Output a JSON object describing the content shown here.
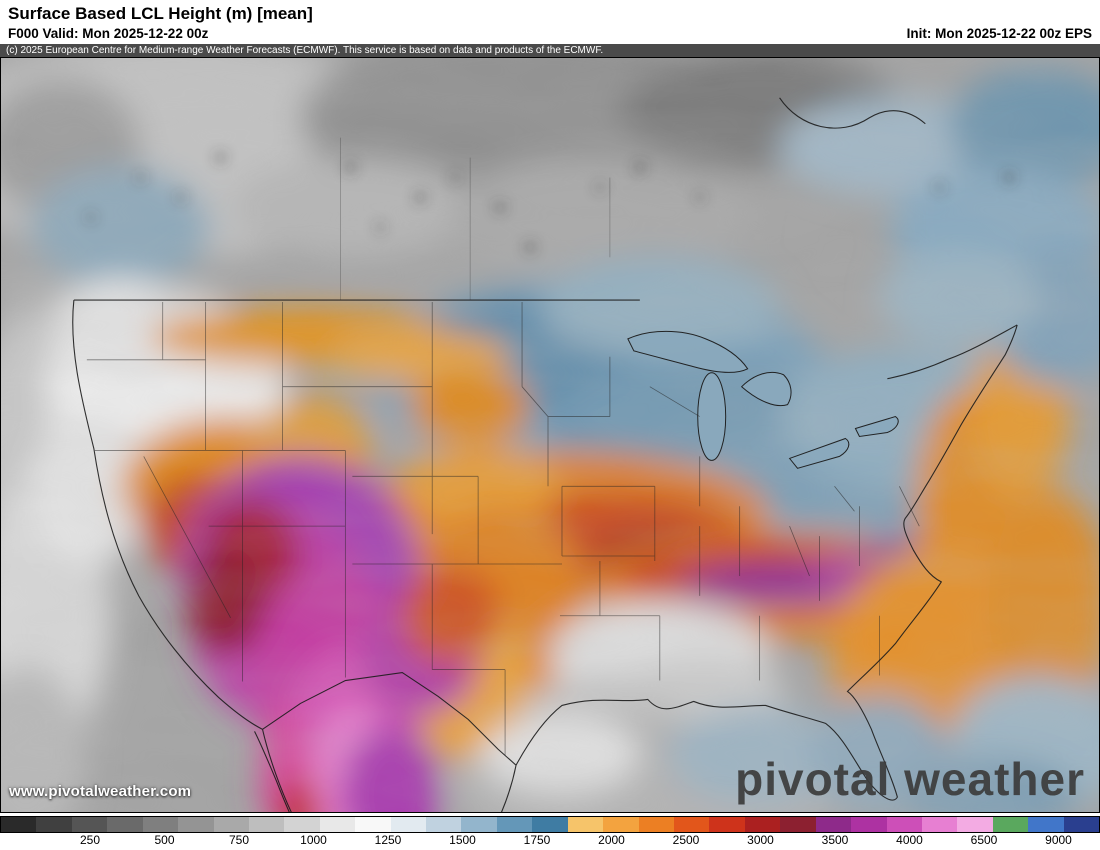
{
  "header": {
    "title": "Surface Based LCL Height (m) [mean]",
    "valid": "F000 Valid: Mon 2025-12-22 00z",
    "init": "Init: Mon 2025-12-22 00z EPS"
  },
  "copyright": {
    "text": "(c) 2025 European Centre for Medium-range Weather Forecasts (ECMWF). This service is based on data and products of the ECMWF."
  },
  "map": {
    "watermark": "www.pivotalweather.com",
    "logo": "pivotal weather"
  },
  "colorbar": {
    "labels": [
      "250",
      "500",
      "750",
      "1000",
      "1250",
      "1500",
      "1750",
      "2000",
      "2500",
      "3000",
      "3500",
      "4000",
      "6500",
      "9000"
    ],
    "colors": [
      "#2a2a2a",
      "#404040",
      "#555555",
      "#6a6a6a",
      "#7f7f7f",
      "#949494",
      "#a9a9a9",
      "#bebebe",
      "#d3d3d3",
      "#e8e8e8",
      "#f8f8f8",
      "#e2eaf0",
      "#c0d2e0",
      "#93b5cc",
      "#6497b8",
      "#3f7ca3",
      "#f6c46a",
      "#f3a33f",
      "#ec7f23",
      "#e2561b",
      "#ce331b",
      "#ab2020",
      "#8c2030",
      "#8e2a8a",
      "#ad32a2",
      "#cd4fb8",
      "#e77fd2",
      "#f3abe3",
      "#5aa85e",
      "#4176c9",
      "#2a3f8f"
    ],
    "label_color": "#000000"
  }
}
